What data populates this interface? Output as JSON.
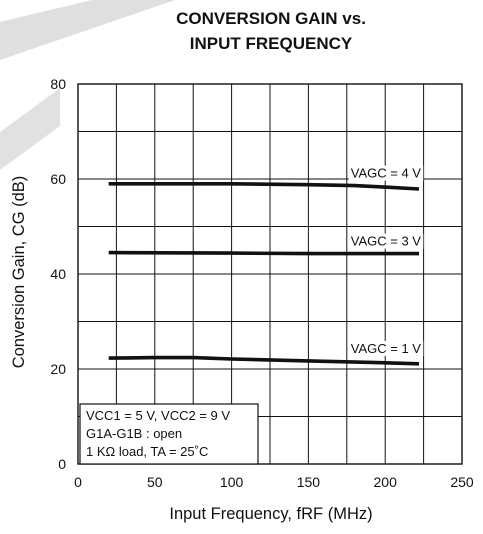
{
  "colors": {
    "series": "#111111",
    "grid": "#111111",
    "background": "#ffffff",
    "watermark": "#d9d9d9"
  },
  "chart_data": {
    "type": "line",
    "title_lines": [
      "CONVERSION GAIN vs.",
      "INPUT FREQUENCY"
    ],
    "xlabel": "Input Frequency, fRF (MHz)",
    "ylabel": "Conversion Gain, CG (dB)",
    "xlim": [
      0,
      250
    ],
    "ylim": [
      0,
      80
    ],
    "x_ticks": [
      "0",
      "50",
      "100",
      "150",
      "200",
      "250"
    ],
    "y_ticks": [
      "0",
      "20",
      "40",
      "60",
      "80"
    ],
    "x_grid_step": 25,
    "y_grid_step": 10,
    "grid": true,
    "series": [
      {
        "name": "VAGC = 4 V",
        "x": [
          20,
          50,
          100,
          150,
          180,
          200,
          222
        ],
        "y": [
          59.0,
          59.0,
          59.0,
          58.8,
          58.6,
          58.3,
          57.9
        ]
      },
      {
        "name": "VAGC = 3 V",
        "x": [
          20,
          100,
          150,
          200,
          222
        ],
        "y": [
          44.5,
          44.4,
          44.3,
          44.3,
          44.3
        ]
      },
      {
        "name": "VAGC = 1 V",
        "x": [
          20,
          50,
          75,
          100,
          150,
          200,
          222
        ],
        "y": [
          22.3,
          22.4,
          22.4,
          22.1,
          21.7,
          21.3,
          21.1
        ]
      }
    ],
    "conditions": [
      "VCC1 = 5 V, VCC2 = 9 V",
      "G1A-G1B : open",
      "1 KΩ load, TA = 25˚C"
    ]
  }
}
